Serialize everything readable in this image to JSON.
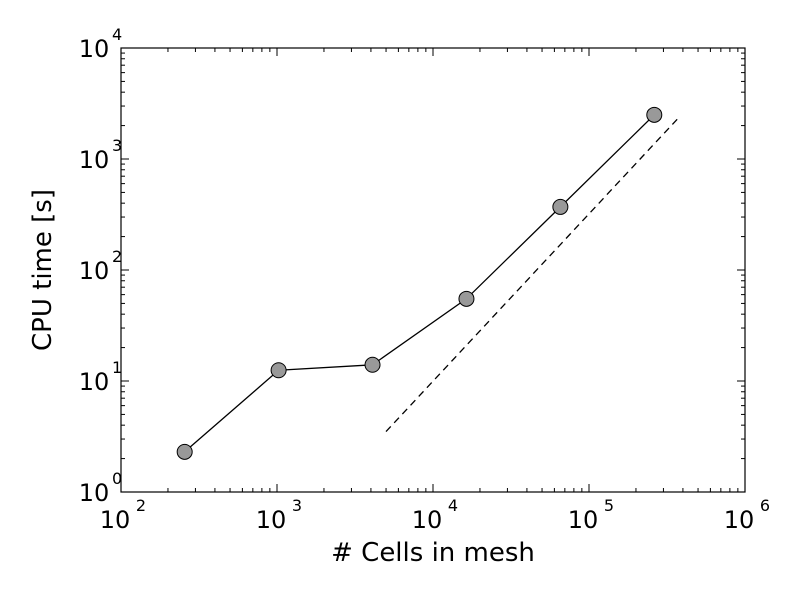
{
  "chart_data": {
    "type": "line",
    "title": "",
    "xlabel": "# Cells in mesh",
    "ylabel": "CPU time [s]",
    "xscale": "log",
    "yscale": "log",
    "xlim": [
      100,
      1000000
    ],
    "ylim": [
      1,
      10000
    ],
    "grid": false,
    "x_ticks": [
      {
        "base": "10",
        "exp": "2"
      },
      {
        "base": "10",
        "exp": "3"
      },
      {
        "base": "10",
        "exp": "4"
      },
      {
        "base": "10",
        "exp": "5"
      },
      {
        "base": "10",
        "exp": "6"
      }
    ],
    "y_ticks": [
      {
        "base": "10",
        "exp": "0"
      },
      {
        "base": "10",
        "exp": "1"
      },
      {
        "base": "10",
        "exp": "2"
      },
      {
        "base": "10",
        "exp": "3"
      },
      {
        "base": "10",
        "exp": "4"
      }
    ],
    "series": [
      {
        "style": "solid-line-circle-markers",
        "color": "#000000",
        "marker_color": "#999999",
        "points": [
          {
            "x": 256,
            "y": 2.3
          },
          {
            "x": 1024,
            "y": 12.5
          },
          {
            "x": 4096,
            "y": 14
          },
          {
            "x": 16384,
            "y": 55
          },
          {
            "x": 65536,
            "y": 370
          },
          {
            "x": 262144,
            "y": 2500
          }
        ]
      },
      {
        "style": "dashed",
        "color": "#000000",
        "points": [
          {
            "x": 5000,
            "y": 3.5
          },
          {
            "x": 370000,
            "y": 2300
          }
        ]
      }
    ]
  }
}
